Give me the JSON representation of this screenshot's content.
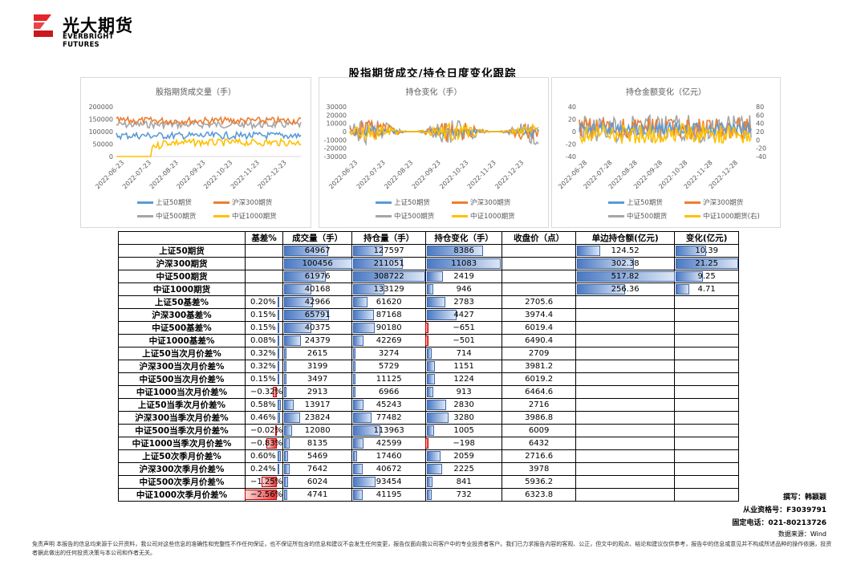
{
  "brand": {
    "cn": "光大期货",
    "en": "EVERBRIGHT FUTURES"
  },
  "title": "股指期货成交/持仓日度变化跟踪",
  "colors": {
    "sz50": "#5b9bd5",
    "hs300": "#ed7d31",
    "zz500": "#a5a5a5",
    "zz1000": "#ffc000"
  },
  "charts": [
    {
      "title": "股指期货成交量（手）",
      "yticks": [
        "200000",
        "150000",
        "100000",
        "50000",
        "0"
      ],
      "dates": [
        "2022-06-23",
        "2022-07-23",
        "2022-08-23",
        "2022-09-23",
        "2022-10-23",
        "2022-11-23",
        "2022-12-23"
      ],
      "legend": [
        "上证50期货",
        "沪深300期货",
        "中证500期货",
        "中证1000期货"
      ]
    },
    {
      "title": "持仓变化（手）",
      "yticks": [
        "30000",
        "20000",
        "10000",
        "0",
        "-10000",
        "-20000",
        "-30000"
      ],
      "dates": [
        "2022-06-23",
        "2022-07-23",
        "2022-08-23",
        "2022-09-23",
        "2022-10-23",
        "2022-11-23",
        "2022-12-23"
      ],
      "legend": [
        "上证50期货",
        "沪深300期货",
        "中证500期货",
        "中证1000期货"
      ]
    },
    {
      "title": "持仓金额变化（亿元）",
      "yticks": [
        "40",
        "20",
        "0",
        "-20",
        "-40"
      ],
      "yticks_r": [
        "80",
        "60",
        "40",
        "20",
        "0",
        "-20",
        "-40"
      ],
      "dates": [
        "2022-06-28",
        "2022-07-28",
        "2022-08-28",
        "2022-09-28",
        "2022-10-28",
        "2022-11-28",
        "2022-12-28"
      ],
      "legend": [
        "上证50期货",
        "沪深300期货",
        "中证500期货",
        "中证1000期货(右)"
      ]
    }
  ],
  "table": {
    "headers": [
      "基差%",
      "成交量（手）",
      "持仓量（手）",
      "持仓变化（手）",
      "收盘价（点）",
      "单边持仓额(亿元)",
      "变化(亿元)"
    ],
    "rows": [
      {
        "label": "上证50期货",
        "basis": "",
        "vol": "64967",
        "oi": "127597",
        "chg": "8386",
        "close": "",
        "amt": "124.52",
        "amtchg": "10.39"
      },
      {
        "label": "沪深300期货",
        "basis": "",
        "vol": "100456",
        "oi": "211051",
        "chg": "11083",
        "close": "",
        "amt": "302.38",
        "amtchg": "21.25"
      },
      {
        "label": "中证500期货",
        "basis": "",
        "vol": "61976",
        "oi": "308722",
        "chg": "2419",
        "close": "",
        "amt": "517.82",
        "amtchg": "9.25"
      },
      {
        "label": "中证1000期货",
        "basis": "",
        "vol": "40168",
        "oi": "133129",
        "chg": "946",
        "close": "",
        "amt": "256.36",
        "amtchg": "4.71"
      },
      {
        "label": "上证50基差%",
        "basis": "0.20%",
        "vol": "42966",
        "oi": "61620",
        "chg": "2783",
        "close": "2705.6",
        "amt": "",
        "amtchg": ""
      },
      {
        "label": "沪深300基差%",
        "basis": "0.15%",
        "vol": "65791",
        "oi": "87168",
        "chg": "4427",
        "close": "3974.4",
        "amt": "",
        "amtchg": ""
      },
      {
        "label": "中证500基差%",
        "basis": "0.15%",
        "vol": "40375",
        "oi": "90180",
        "chg": "−651",
        "close": "6019.4",
        "amt": "",
        "amtchg": ""
      },
      {
        "label": "中证1000基差%",
        "basis": "0.08%",
        "vol": "24379",
        "oi": "42269",
        "chg": "−501",
        "close": "6490.4",
        "amt": "",
        "amtchg": ""
      },
      {
        "label": "上证50当次月价差%",
        "basis": "0.32%",
        "vol": "2615",
        "oi": "3274",
        "chg": "714",
        "close": "2709",
        "amt": "",
        "amtchg": ""
      },
      {
        "label": "沪深300当次月价差%",
        "basis": "0.32%",
        "vol": "3199",
        "oi": "5729",
        "chg": "1151",
        "close": "3981.2",
        "amt": "",
        "amtchg": ""
      },
      {
        "label": "中证500当次月价差%",
        "basis": "0.15%",
        "vol": "3497",
        "oi": "11125",
        "chg": "1224",
        "close": "6019.2",
        "amt": "",
        "amtchg": ""
      },
      {
        "label": "中证1000当次月价差%",
        "basis": "−0.32%",
        "vol": "2913",
        "oi": "6966",
        "chg": "913",
        "close": "6464.6",
        "amt": "",
        "amtchg": ""
      },
      {
        "label": "上证50当季次月价差%",
        "basis": "0.58%",
        "vol": "13917",
        "oi": "45243",
        "chg": "2830",
        "close": "2716",
        "amt": "",
        "amtchg": ""
      },
      {
        "label": "沪深300当季次月价差%",
        "basis": "0.46%",
        "vol": "23824",
        "oi": "77482",
        "chg": "3280",
        "close": "3986.8",
        "amt": "",
        "amtchg": ""
      },
      {
        "label": "中证500当季次月价差%",
        "basis": "−0.02%",
        "vol": "12080",
        "oi": "113963",
        "chg": "1005",
        "close": "6009",
        "amt": "",
        "amtchg": ""
      },
      {
        "label": "中证1000当季次月价差%",
        "basis": "−0.83%",
        "vol": "8135",
        "oi": "42599",
        "chg": "−198",
        "close": "6432",
        "amt": "",
        "amtchg": ""
      },
      {
        "label": "上证50次季月价差%",
        "basis": "0.60%",
        "vol": "5469",
        "oi": "17460",
        "chg": "2059",
        "close": "2716.6",
        "amt": "",
        "amtchg": ""
      },
      {
        "label": "沪深300次季月价差%",
        "basis": "0.24%",
        "vol": "7642",
        "oi": "40672",
        "chg": "2225",
        "close": "3978",
        "amt": "",
        "amtchg": ""
      },
      {
        "label": "中证500次季月价差%",
        "basis": "−1.25%",
        "vol": "6024",
        "oi": "93454",
        "chg": "841",
        "close": "5936.2",
        "amt": "",
        "amtchg": ""
      },
      {
        "label": "中证1000次季月价差%",
        "basis": "−2.56%",
        "vol": "4741",
        "oi": "41195",
        "chg": "732",
        "close": "6323.8",
        "amt": "",
        "amtchg": ""
      }
    ]
  },
  "bars": {
    "basis": [
      0,
      0,
      0,
      0,
      0.2,
      0.15,
      0.15,
      0.08,
      0.32,
      0.32,
      0.15,
      -0.32,
      0.58,
      0.46,
      -0.02,
      -0.83,
      0.6,
      0.24,
      -1.25,
      -2.56
    ],
    "vol": [
      64967,
      100456,
      61976,
      40168,
      42966,
      65791,
      40375,
      24379,
      2615,
      3199,
      3497,
      2913,
      13917,
      23824,
      12080,
      8135,
      5469,
      7642,
      6024,
      4741
    ],
    "oi": [
      127597,
      211051,
      308722,
      133129,
      61620,
      87168,
      90180,
      42269,
      3274,
      5729,
      11125,
      6966,
      45243,
      77482,
      113963,
      42599,
      17460,
      40672,
      93454,
      41195
    ],
    "chg": [
      8386,
      11083,
      2419,
      946,
      2783,
      4427,
      -651,
      -501,
      714,
      1151,
      1224,
      913,
      2830,
      3280,
      1005,
      -198,
      2059,
      2225,
      841,
      732
    ],
    "amt": [
      124.52,
      302.38,
      517.82,
      256.36
    ],
    "amtchg": [
      10.39,
      21.25,
      9.25,
      4.71
    ]
  },
  "sign": {
    "author": "撰写：韩颖颖",
    "license": "从业资格号：F3039791",
    "phone": "固定电话：021-80213726",
    "source": "数据来源：Wind"
  },
  "disclaimer": "免责声明  本报告的信息均来源于公开资料，我公司对这些信息的准确性和完整性不作任何保证，也不保证所包含的信息和建议不会发生任何变更，报告仅面向我公司客户中的专业投资者客户。我们已力求报告内容的客观、公正，但文中的观点、结论和建议仅供参考，报告中的信息或意见并不构成所述品种的操作依据，投资者据此做出的任何投资决策与本公司和作者无关。"
}
